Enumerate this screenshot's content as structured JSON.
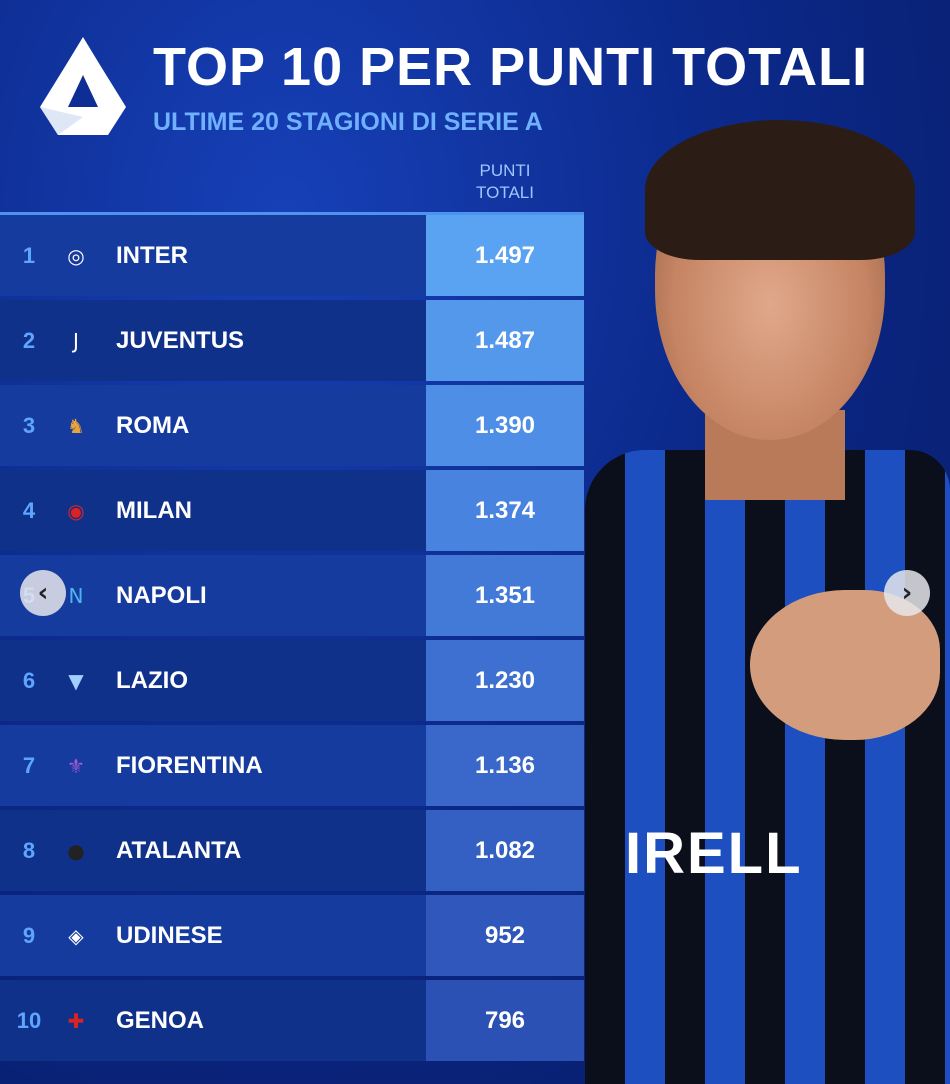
{
  "header": {
    "title": "TOP 10 PER PUNTI TOTALI",
    "subtitle": "ULTIME 20 STAGIONI DI SERIE A",
    "column_header": [
      "PUNTI",
      "TOTALI"
    ]
  },
  "photo": {
    "sponsor_text": "IRELL"
  },
  "chart_data": {
    "type": "table",
    "title": "TOP 10 PER PUNTI TOTALI",
    "subtitle": "ULTIME 20 STAGIONI DI SERIE A",
    "columns": [
      "",
      "",
      "PUNTI TOTALI"
    ],
    "rows": [
      {
        "rank": "1",
        "team": "INTER",
        "points": "1.497",
        "crest": "inter-crest",
        "color": "#5aa2f2"
      },
      {
        "rank": "2",
        "team": "JUVENTUS",
        "points": "1.487",
        "crest": "juventus-crest",
        "color": "#5498ec"
      },
      {
        "rank": "3",
        "team": "ROMA",
        "points": "1.390",
        "crest": "roma-crest",
        "color": "#4e8ee6"
      },
      {
        "rank": "4",
        "team": "MILAN",
        "points": "1.374",
        "crest": "milan-crest",
        "color": "#4884df"
      },
      {
        "rank": "5",
        "team": "NAPOLI",
        "points": "1.351",
        "crest": "napoli-crest",
        "color": "#437ad8"
      },
      {
        "rank": "6",
        "team": "LAZIO",
        "points": "1.230",
        "crest": "lazio-crest",
        "color": "#3e70d1"
      },
      {
        "rank": "7",
        "team": "FIORENTINA",
        "points": "1.136",
        "crest": "fiorentina-crest",
        "color": "#3968ca"
      },
      {
        "rank": "8",
        "team": "ATALANTA",
        "points": "1.082",
        "crest": "atalanta-crest",
        "color": "#3460c3"
      },
      {
        "rank": "9",
        "team": "UDINESE",
        "points": "952",
        "crest": "udinese-crest",
        "color": "#3058bc"
      },
      {
        "rank": "10",
        "team": "GENOA",
        "points": "796",
        "crest": "genoa-crest",
        "color": "#2c51b5"
      }
    ]
  },
  "carousel": {
    "prev_icon": "chevron-left-icon",
    "next_icon": "chevron-right-icon",
    "prev": "‹",
    "next": "›"
  },
  "colors": {
    "accent": "#6fb0ff",
    "rank": "#5ea5ff",
    "row_a": "#163b9f",
    "row_b": "#10318a"
  }
}
